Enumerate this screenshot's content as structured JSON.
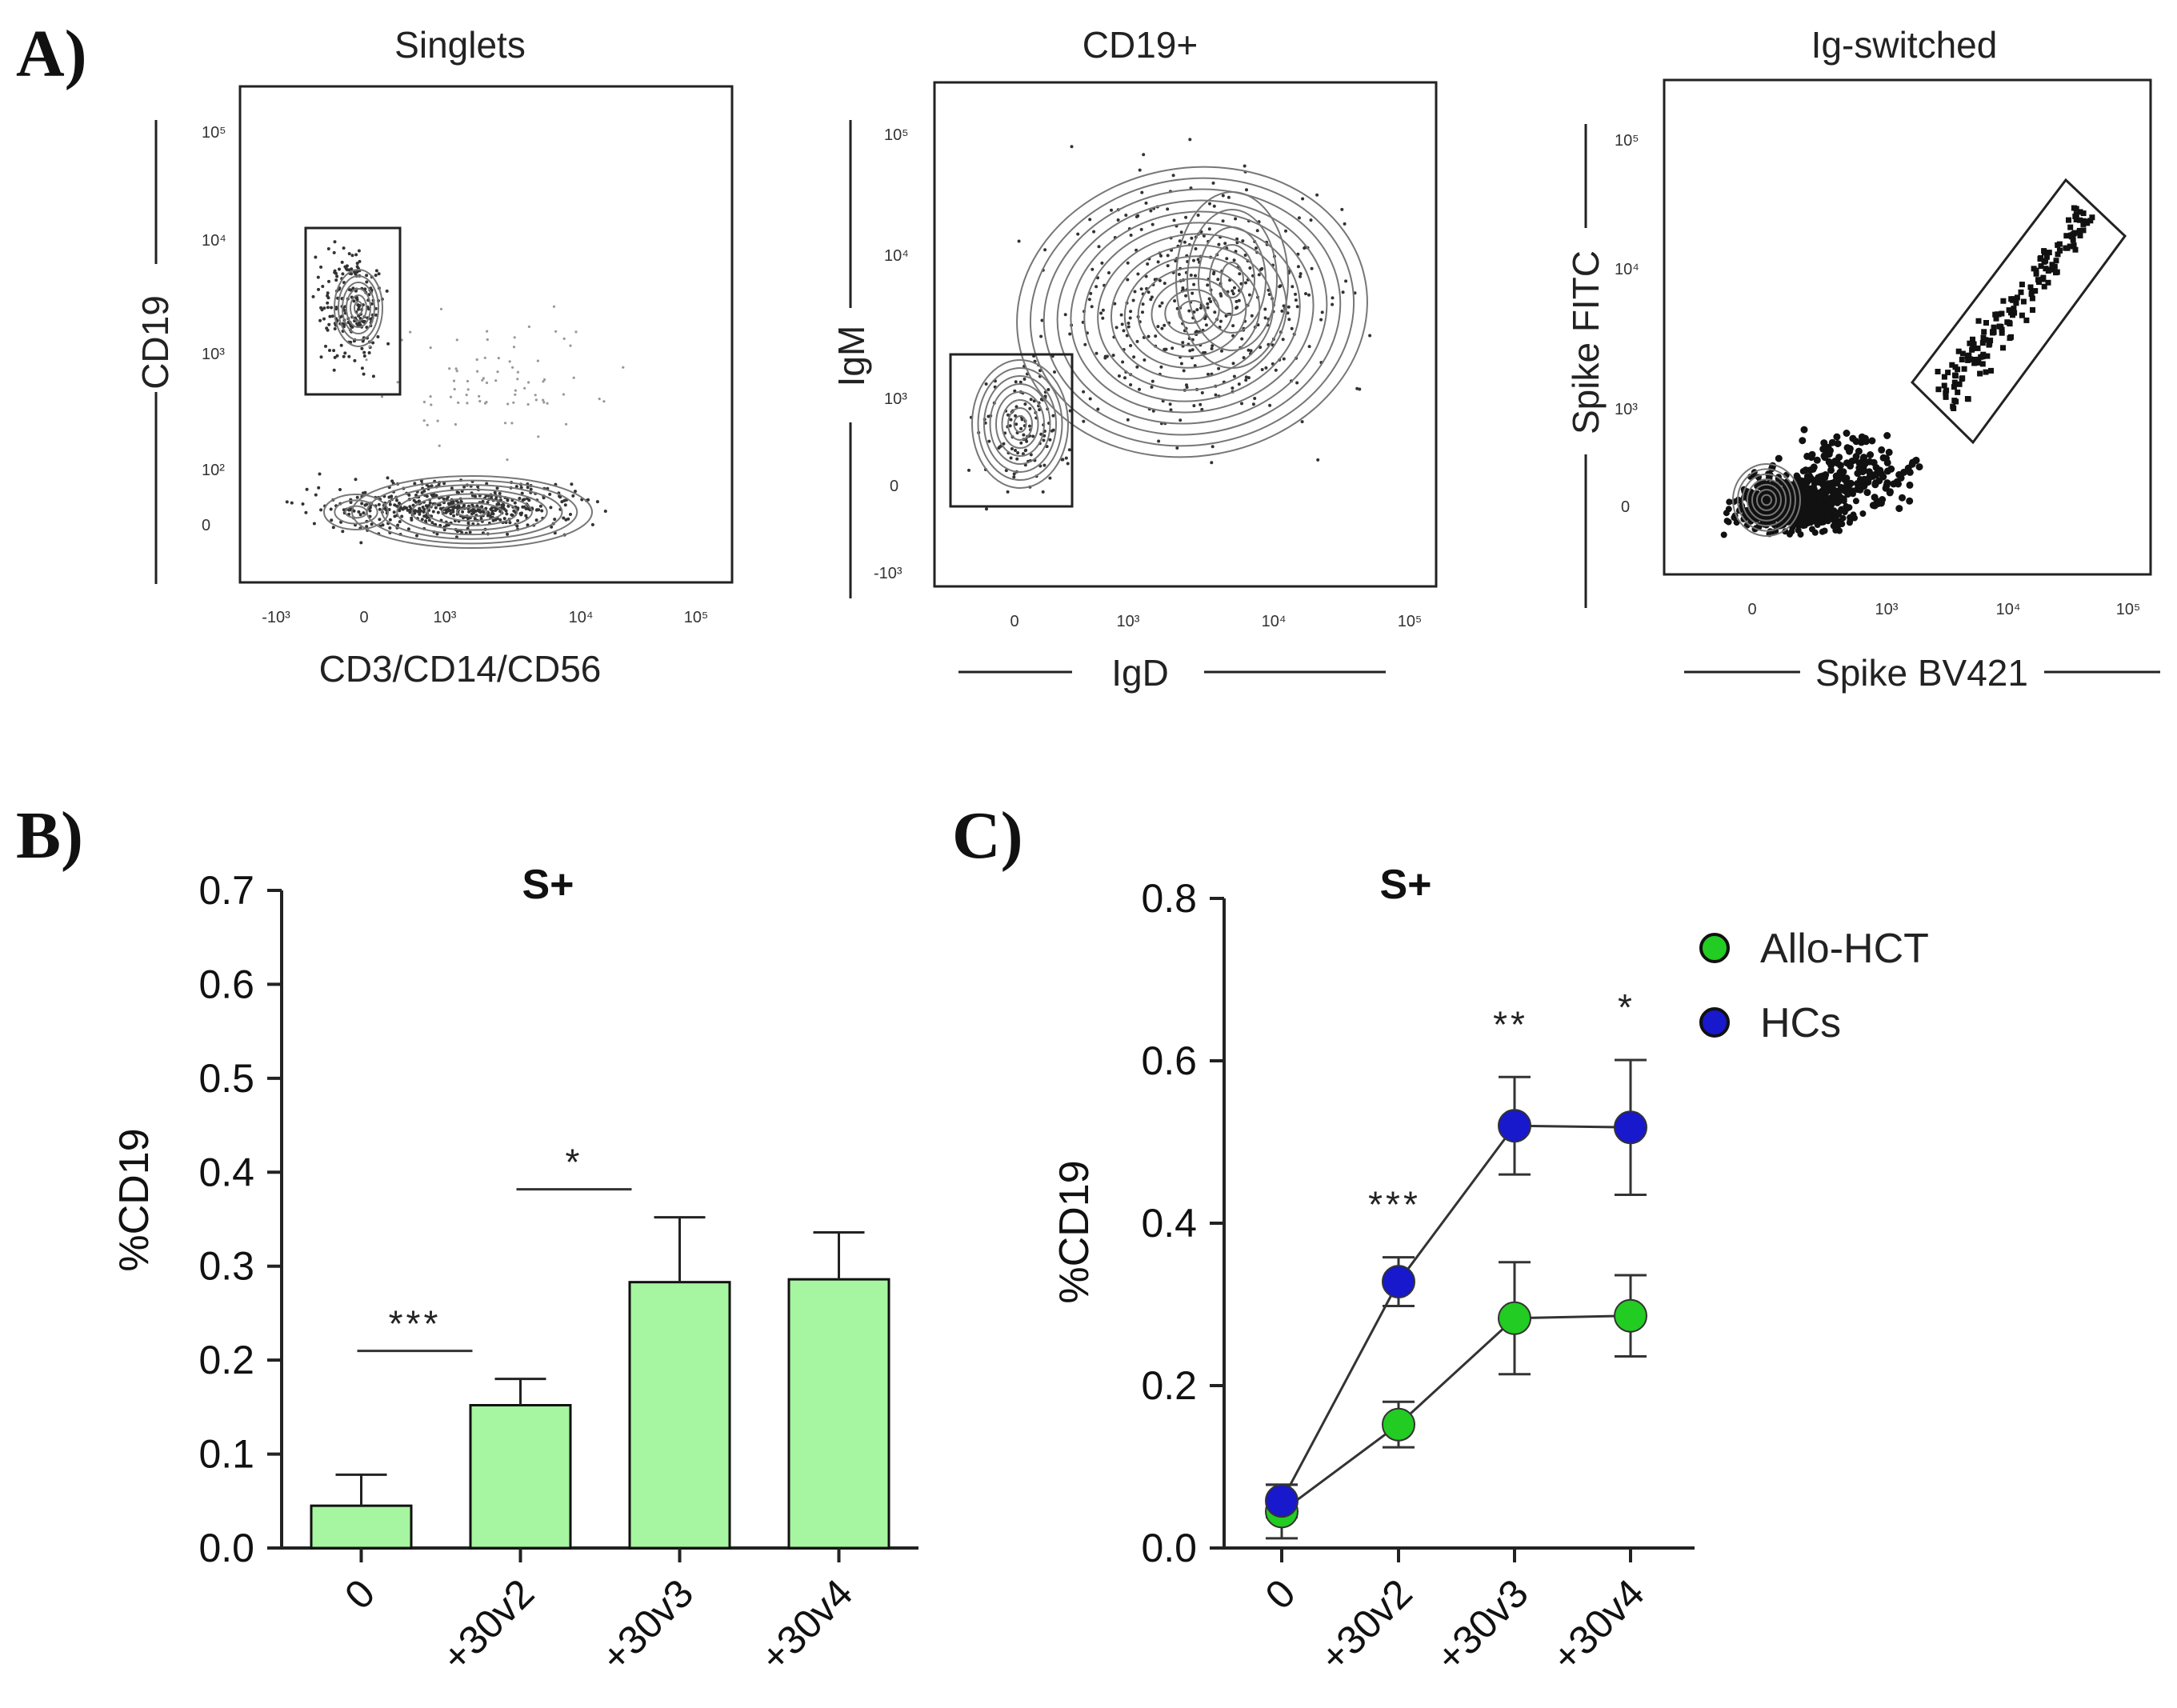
{
  "panel_labels": {
    "a": "A)",
    "b": "B)",
    "c": "C)"
  },
  "flow_panels": [
    {
      "title": "Singlets",
      "xlabel": "CD3/CD14/CD56",
      "ylabel": "CD19",
      "x_ticks": [
        "-10³",
        "0",
        "10³",
        "10⁴",
        "10⁵"
      ],
      "y_ticks": [
        "10⁵",
        "10⁴",
        "10³",
        "10²",
        "0"
      ]
    },
    {
      "title": "CD19+",
      "xlabel": "IgD",
      "ylabel": "IgM",
      "x_ticks": [
        "0",
        "10³",
        "10⁴",
        "10⁵"
      ],
      "y_ticks": [
        "10⁵",
        "10⁴",
        "10³",
        "0",
        "-10³"
      ]
    },
    {
      "title": "Ig-switched",
      "xlabel": "Spike BV421",
      "ylabel": "Spike FITC",
      "x_ticks": [
        "0",
        "10³",
        "10⁴",
        "10⁵"
      ],
      "y_ticks": [
        "10⁵",
        "10⁴",
        "10³",
        "0"
      ]
    }
  ],
  "chart_data": [
    {
      "type": "bar",
      "title": "S+",
      "xlabel": "",
      "ylabel": "%CD19",
      "categories": [
        "0",
        "+30v2",
        "+30v3",
        "+30v4"
      ],
      "values": [
        0.045,
        0.152,
        0.283,
        0.286
      ],
      "errors": [
        0.033,
        0.028,
        0.069,
        0.05
      ],
      "ylim": [
        0,
        0.7
      ],
      "yticks": [
        "0.0",
        "0.1",
        "0.2",
        "0.3",
        "0.4",
        "0.5",
        "0.6",
        "0.7"
      ],
      "bar_color": "#a6f5a0",
      "significance": [
        {
          "from": 0,
          "to": 1,
          "label": "***"
        },
        {
          "from": 1,
          "to": 2,
          "label": "*"
        }
      ]
    },
    {
      "type": "line",
      "title": "S+",
      "xlabel": "",
      "ylabel": "%CD19",
      "categories": [
        "0",
        "+30v2",
        "+30v3",
        "+30v4"
      ],
      "ylim": [
        0,
        0.8
      ],
      "yticks": [
        "0.0",
        "0.2",
        "0.4",
        "0.6",
        "0.8"
      ],
      "series": [
        {
          "name": "Allo-HCT",
          "color": "#22cc22",
          "values": [
            0.045,
            0.152,
            0.283,
            0.286
          ],
          "errors": [
            0.033,
            0.028,
            0.069,
            0.05
          ]
        },
        {
          "name": "HCs",
          "color": "#1818cc",
          "values": [
            0.058,
            0.328,
            0.52,
            0.518
          ],
          "errors": [
            0.02,
            0.03,
            0.06,
            0.083
          ]
        }
      ],
      "significance": [
        {
          "index": 1,
          "label": "***"
        },
        {
          "index": 2,
          "label": "**"
        },
        {
          "index": 3,
          "label": "*"
        }
      ],
      "legend_position": "top-right"
    }
  ]
}
